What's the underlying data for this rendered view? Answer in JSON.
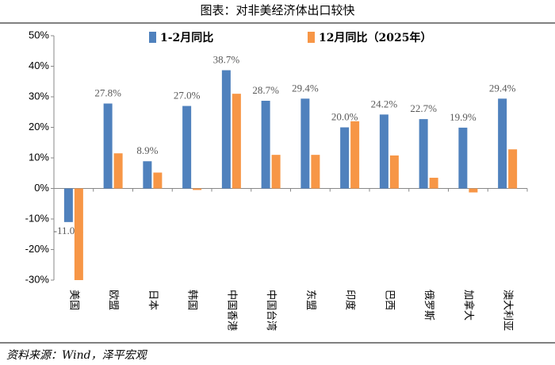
{
  "title": "图表：对非美经济体出口较快",
  "source": "资料来源：Wind，泽平宏观",
  "chart_data": {
    "type": "bar",
    "categories": [
      "美国",
      "欧盟",
      "日本",
      "韩国",
      "中国香港",
      "中国台湾",
      "东盟",
      "印度",
      "巴西",
      "俄罗斯",
      "加拿大",
      "澳大利亚"
    ],
    "series": [
      {
        "name": "1-2月同比",
        "color": "#4f81bd",
        "values": [
          -11.0,
          27.8,
          8.9,
          27.0,
          38.7,
          28.7,
          29.4,
          20.0,
          24.2,
          22.7,
          19.9,
          29.4
        ],
        "value_labels": [
          "-11.0%",
          "27.8%",
          "8.9%",
          "27.0%",
          "38.7%",
          "28.7%",
          "29.4%",
          "20.0%",
          "24.2%",
          "22.7%",
          "19.9%",
          "29.4%"
        ]
      },
      {
        "name": "12月同比（2025年）",
        "color": "#f79646",
        "values": [
          -30.0,
          11.5,
          5.2,
          -0.5,
          31.0,
          11.0,
          11.0,
          22.0,
          10.8,
          3.5,
          -1.3,
          12.8
        ]
      }
    ],
    "ylim": [
      -30,
      50
    ],
    "yticks": [
      {
        "value": -30,
        "label": "-30%"
      },
      {
        "value": -20,
        "label": "-20%"
      },
      {
        "value": -10,
        "label": "-10%"
      },
      {
        "value": 0,
        "label": "0%"
      },
      {
        "value": 10,
        "label": "10%"
      },
      {
        "value": 20,
        "label": "20%"
      },
      {
        "value": 30,
        "label": "30%"
      },
      {
        "value": 40,
        "label": "40%"
      },
      {
        "value": 50,
        "label": "50%"
      }
    ],
    "legend": "top"
  }
}
